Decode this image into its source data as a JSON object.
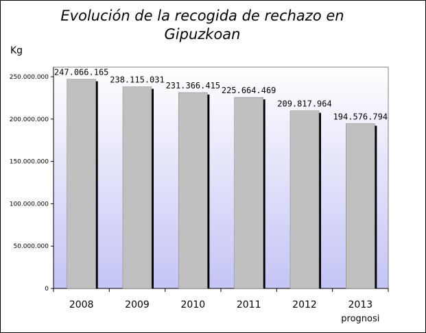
{
  "chart_data": {
    "type": "bar",
    "title_lines": [
      "Evolución de la recogida de rechazo en",
      "Gipuzkoan"
    ],
    "ylabel": "Kg",
    "xlabel": "",
    "categories": [
      "2008",
      "2009",
      "2010",
      "2011",
      "2012",
      "2013"
    ],
    "category_notes": [
      "",
      "",
      "",
      "",
      "",
      "prognosi"
    ],
    "values": [
      247066165,
      238115031,
      231366415,
      225664469,
      209817964,
      194576794
    ],
    "value_labels": [
      "247.066.165",
      "238.115.031",
      "231.366.415",
      "225.664.469",
      "209.817.964",
      "194.576.794"
    ],
    "ylim": [
      0,
      250000000
    ],
    "yticks": [
      0,
      50000000,
      100000000,
      150000000,
      200000000,
      250000000
    ],
    "ytick_labels": [
      "0",
      "50.000.000",
      "100.000.000",
      "150.000.000",
      "200.000.000",
      "250.000.000"
    ],
    "grid": false,
    "colors": {
      "bar": "#c0c0c0",
      "bar_shadow": "#000000",
      "plot_top": "#ffffff",
      "plot_bottom": "#c4c4f6"
    }
  }
}
